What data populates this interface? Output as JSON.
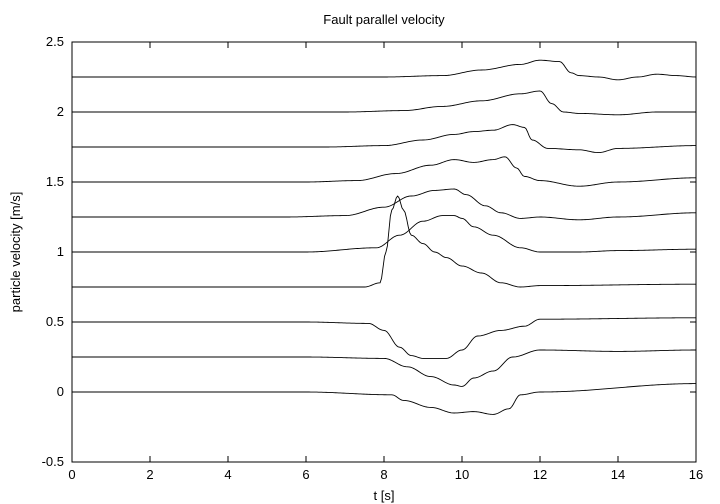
{
  "chart_data": {
    "type": "line",
    "title": "Fault parallel velocity",
    "xlabel": "t [s]",
    "ylabel": "particle velocity [m/s]",
    "xlim": [
      0,
      16
    ],
    "ylim": [
      -0.5,
      2.5
    ],
    "xticks": [
      0,
      2,
      4,
      6,
      8,
      10,
      12,
      14,
      16
    ],
    "yticks": [
      -0.5,
      0,
      0.5,
      1,
      1.5,
      2,
      2.5
    ],
    "xtick_labels": [
      "0",
      "2",
      "4",
      "6",
      "8",
      "10",
      "12",
      "14",
      "16"
    ],
    "ytick_labels": [
      "-0.5",
      "0",
      "0.5",
      "1",
      "1.5",
      "2",
      "2.5"
    ],
    "grid": false,
    "series": [
      {
        "x": [
          0,
          6,
          8.2,
          8.5,
          9.2,
          9.8,
          10.3,
          10.8,
          11.2,
          11.5,
          12,
          16
        ],
        "y": [
          0,
          0,
          -0.02,
          -0.06,
          -0.11,
          -0.15,
          -0.14,
          -0.16,
          -0.12,
          -0.02,
          0,
          0.06
        ]
      },
      {
        "x": [
          0,
          6,
          8,
          8.6,
          9.2,
          9.8,
          10,
          10.3,
          10.8,
          11.3,
          12,
          14,
          16
        ],
        "y": [
          0.25,
          0.25,
          0.24,
          0.18,
          0.11,
          0.05,
          0.04,
          0.1,
          0.15,
          0.25,
          0.3,
          0.29,
          0.3
        ]
      },
      {
        "x": [
          0,
          6,
          7.6,
          8,
          8.4,
          8.7,
          9,
          9.6,
          10,
          10.4,
          11,
          11.6,
          12,
          16
        ],
        "y": [
          0.5,
          0.5,
          0.49,
          0.44,
          0.32,
          0.26,
          0.24,
          0.24,
          0.3,
          0.4,
          0.44,
          0.47,
          0.52,
          0.53
        ]
      },
      {
        "x": [
          0,
          7.5,
          7.9,
          8.05,
          8.2,
          8.35,
          8.5,
          8.7,
          9,
          9.3,
          9.6,
          10,
          10.5,
          11,
          11.5,
          12,
          16
        ],
        "y": [
          0.75,
          0.75,
          0.78,
          1.0,
          1.3,
          1.4,
          1.3,
          1.12,
          1.06,
          1.0,
          0.96,
          0.9,
          0.85,
          0.78,
          0.75,
          0.76,
          0.77
        ]
      },
      {
        "x": [
          0,
          6,
          7.8,
          8.4,
          9,
          9.5,
          9.8,
          10,
          10.3,
          10.8,
          11.5,
          12,
          13,
          14,
          16
        ],
        "y": [
          1.0,
          1.0,
          1.03,
          1.12,
          1.22,
          1.26,
          1.26,
          1.24,
          1.18,
          1.12,
          1.03,
          1.0,
          1.0,
          1.01,
          1.02
        ]
      },
      {
        "x": [
          0,
          5.5,
          7,
          8,
          8.7,
          9.3,
          9.8,
          10.1,
          10.6,
          11,
          11.5,
          12,
          13,
          14,
          16
        ],
        "y": [
          1.25,
          1.25,
          1.26,
          1.32,
          1.4,
          1.44,
          1.45,
          1.41,
          1.33,
          1.28,
          1.24,
          1.25,
          1.23,
          1.25,
          1.28
        ]
      },
      {
        "x": [
          0,
          6,
          7.3,
          8.3,
          9.2,
          9.8,
          10.3,
          10.8,
          11.1,
          11.4,
          11.6,
          12,
          13,
          14,
          16
        ],
        "y": [
          1.5,
          1.5,
          1.51,
          1.56,
          1.62,
          1.66,
          1.64,
          1.66,
          1.68,
          1.6,
          1.54,
          1.51,
          1.47,
          1.5,
          1.53
        ]
      },
      {
        "x": [
          0,
          6.5,
          8,
          9,
          9.8,
          10.3,
          10.8,
          11.3,
          11.6,
          11.8,
          12.2,
          13,
          13.5,
          14,
          16
        ],
        "y": [
          1.75,
          1.75,
          1.76,
          1.8,
          1.84,
          1.86,
          1.87,
          1.91,
          1.89,
          1.8,
          1.74,
          1.73,
          1.71,
          1.74,
          1.76
        ]
      },
      {
        "x": [
          0,
          7,
          8.5,
          9.5,
          10.5,
          11.5,
          12,
          12.3,
          12.6,
          13,
          14,
          15,
          16
        ],
        "y": [
          2.0,
          2.0,
          2.01,
          2.04,
          2.08,
          2.13,
          2.15,
          2.06,
          2.0,
          1.99,
          1.98,
          2.0,
          2.0
        ]
      },
      {
        "x": [
          0,
          8,
          9.5,
          10.5,
          11.5,
          12,
          12.5,
          12.8,
          13,
          13.5,
          14,
          14.5,
          15,
          15.5,
          16
        ],
        "y": [
          2.25,
          2.25,
          2.26,
          2.3,
          2.34,
          2.37,
          2.36,
          2.28,
          2.26,
          2.25,
          2.23,
          2.25,
          2.27,
          2.26,
          2.25
        ]
      }
    ]
  }
}
